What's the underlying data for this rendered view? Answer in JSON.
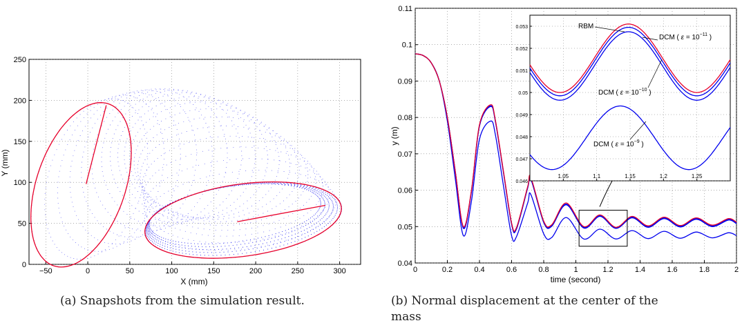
{
  "figure_a": {
    "caption": "(a) Snapshots from the simulation result."
  },
  "figure_b": {
    "caption_line1": "(b)  Normal displacement at the center of the",
    "caption_line2": "mass"
  },
  "colors": {
    "red": "#e8002a",
    "blue": "#0000ee",
    "grid": "#666666"
  },
  "chart_data": [
    {
      "type": "scatter",
      "title": "",
      "xlabel": "X (mm)",
      "ylabel": "Y (mm)",
      "xlim": [
        -70,
        325
      ],
      "ylim": [
        0,
        250
      ],
      "xticks": [
        -50,
        0,
        50,
        100,
        150,
        200,
        250,
        300
      ],
      "yticks": [
        0,
        50,
        100,
        150,
        200,
        250
      ],
      "grid": true,
      "series": [
        {
          "color": "#e8002a",
          "shape": "ellipse",
          "description_hidden": false,
          "center": [
            -8,
            97
          ],
          "semi_axes": [
            53,
            104
          ],
          "rotation_deg": -18,
          "spoke": [
            [
              -2,
              98
            ],
            [
              22,
              194
            ]
          ]
        },
        {
          "color": "#e8002a",
          "shape": "ellipse",
          "center": [
            185,
            54
          ],
          "semi_axes": [
            118,
            44
          ],
          "rotation_deg": 8,
          "spoke": [
            [
              178,
              52
            ],
            [
              283,
              72
            ]
          ]
        }
      ]
    },
    {
      "type": "line",
      "title": "",
      "xlabel": "time (second)",
      "ylabel": "y (m)",
      "xlim": [
        0,
        2
      ],
      "ylim": [
        0.04,
        0.11
      ],
      "xticks": [
        0,
        0.2,
        0.4,
        0.6,
        0.8,
        1,
        1.2,
        1.4,
        1.6,
        1.8,
        2
      ],
      "yticks": [
        0.04,
        0.05,
        0.06,
        0.07,
        0.08,
        0.09,
        0.1,
        0.11
      ],
      "grid": true,
      "series": [
        {
          "label": "RBM",
          "color": "#e8002a",
          "x": [
            0,
            0.05,
            0.1,
            0.15,
            0.2,
            0.25,
            0.3,
            0.35,
            0.4,
            0.47,
            0.5,
            0.55,
            0.6,
            0.63,
            0.7,
            0.72,
            0.8,
            0.85,
            0.94,
            1.05,
            1.15,
            1.25,
            1.35,
            1.45,
            1.55,
            1.65,
            1.75,
            1.85,
            1.95,
            2.0
          ],
          "y": [
            0.0975,
            0.097,
            0.095,
            0.09,
            0.08,
            0.065,
            0.05,
            0.06,
            0.078,
            0.0835,
            0.079,
            0.065,
            0.051,
            0.0497,
            0.061,
            0.0635,
            0.0515,
            0.0505,
            0.0565,
            0.05,
            0.0532,
            0.0498,
            0.0528,
            0.0502,
            0.0526,
            0.0503,
            0.0524,
            0.0504,
            0.0522,
            0.0512
          ]
        },
        {
          "label": "DCM ( ε = 10⁻¹¹ )",
          "color": "#0000ee",
          "x": [
            0,
            0.05,
            0.1,
            0.15,
            0.2,
            0.25,
            0.3,
            0.35,
            0.4,
            0.47,
            0.5,
            0.55,
            0.6,
            0.63,
            0.7,
            0.72,
            0.8,
            0.85,
            0.94,
            1.05,
            1.15,
            1.25,
            1.35,
            1.45,
            1.55,
            1.65,
            1.75,
            1.85,
            1.95,
            2.0
          ],
          "y": [
            0.0975,
            0.097,
            0.095,
            0.09,
            0.08,
            0.065,
            0.0497,
            0.0598,
            0.0778,
            0.0832,
            0.0788,
            0.0648,
            0.0508,
            0.0495,
            0.0608,
            0.0632,
            0.0513,
            0.0503,
            0.0562,
            0.0498,
            0.053,
            0.0497,
            0.0526,
            0.05,
            0.0524,
            0.0501,
            0.0522,
            0.0502,
            0.052,
            0.051
          ]
        },
        {
          "label": "DCM ( ε = 10⁻¹⁰ )",
          "color": "#0000ee",
          "x": [
            0,
            0.05,
            0.1,
            0.15,
            0.2,
            0.25,
            0.3,
            0.35,
            0.4,
            0.47,
            0.5,
            0.55,
            0.6,
            0.63,
            0.7,
            0.72,
            0.8,
            0.85,
            0.94,
            1.05,
            1.15,
            1.25,
            1.35,
            1.45,
            1.55,
            1.65,
            1.75,
            1.85,
            1.95,
            2.0
          ],
          "y": [
            0.0975,
            0.097,
            0.095,
            0.09,
            0.08,
            0.065,
            0.0495,
            0.0596,
            0.0776,
            0.083,
            0.0786,
            0.0646,
            0.0506,
            0.0493,
            0.0606,
            0.063,
            0.0511,
            0.0501,
            0.056,
            0.0496,
            0.0528,
            0.0495,
            0.0524,
            0.0498,
            0.0522,
            0.0499,
            0.052,
            0.05,
            0.0518,
            0.0508
          ]
        },
        {
          "label": "DCM ( ε = 10⁻⁹ )",
          "color": "#0000ee",
          "x": [
            0,
            0.05,
            0.1,
            0.15,
            0.2,
            0.25,
            0.3,
            0.35,
            0.4,
            0.47,
            0.5,
            0.55,
            0.6,
            0.63,
            0.7,
            0.72,
            0.8,
            0.85,
            0.94,
            1.05,
            1.15,
            1.25,
            1.35,
            1.45,
            1.55,
            1.65,
            1.75,
            1.85,
            1.95,
            2.0
          ],
          "y": [
            0.0975,
            0.097,
            0.095,
            0.09,
            0.079,
            0.063,
            0.0475,
            0.057,
            0.074,
            0.079,
            0.075,
            0.061,
            0.0475,
            0.0472,
            0.0565,
            0.0588,
            0.048,
            0.047,
            0.0525,
            0.0466,
            0.0493,
            0.0466,
            0.0489,
            0.0467,
            0.0487,
            0.0468,
            0.0485,
            0.0469,
            0.0483,
            0.0475
          ]
        }
      ],
      "zoom_box": {
        "x": [
          1.02,
          1.32
        ],
        "y": [
          0.0446,
          0.0545
        ]
      },
      "inset": {
        "xlim": [
          1.0,
          1.3
        ],
        "ylim": [
          0.046,
          0.0535
        ],
        "xticks": [
          1.05,
          1.1,
          1.15,
          1.2,
          1.25
        ],
        "xtick_labels": [
          "1.05",
          "1.1",
          "1.15",
          "1.2",
          "1.25"
        ],
        "yticks": [
          0.046,
          0.047,
          0.048,
          0.049,
          0.05,
          0.051,
          0.052,
          0.053
        ],
        "ytick_labels": [
          "0.046",
          "0.047",
          "0.048",
          "0.049",
          "0.05",
          "0.051",
          "0.052",
          "0.053"
        ],
        "annotations": {
          "rbm": "RBM",
          "dcm": "DCM ( ",
          "eps": "ε",
          "eq": " = 10",
          "exp11": "−11",
          "exp10": "−10",
          "exp9": "−9",
          "close": " )"
        },
        "series": [
          {
            "color": "#e8002a",
            "amp": 0.00155,
            "mid": 0.05155,
            "shift": 0.0
          },
          {
            "color": "#0000ee",
            "amp": 0.00155,
            "mid": 0.0514,
            "shift": 0.0
          },
          {
            "color": "#0000ee",
            "amp": 0.00155,
            "mid": 0.0512,
            "shift": 0.0
          },
          {
            "color": "#0000ee",
            "amp": 0.00144,
            "mid": 0.04795,
            "shift": -0.012
          }
        ]
      }
    }
  ]
}
